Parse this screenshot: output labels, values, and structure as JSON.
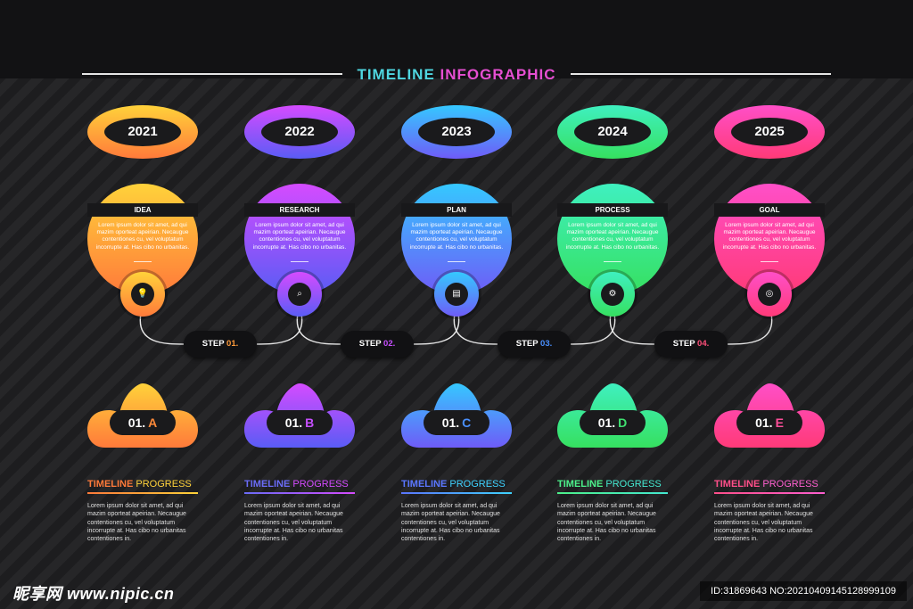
{
  "title": {
    "part1": "TIMELINE",
    "part2": "INFOGRAPHIC"
  },
  "milestones": [
    {
      "year": "2021",
      "label": "IDEA",
      "text": "Lorem ipsum dolor sit amet, ad qui mazim oporteat apeirian. Necaugue contentiones cu, vel voluptatum incorrupte at. Has cibo no urbanitas.",
      "icon": "lightbulb-icon",
      "glyph": "💡",
      "code_num": "01.",
      "code_letter": "A",
      "colors": [
        "#ffd23a",
        "#ff7a3a"
      ],
      "letter_color": "#ff8a3a",
      "progress_a": "TIMELINE",
      "progress_b": "PROGRESS",
      "progress_a_color": "#ff7a3a",
      "progress_b_color": "#ffd23a",
      "desc": "Lorem ipsum dolor sit amet, ad qui mazim oporteat apeirian. Necaugue contentiones cu, vel voluptatum incorrupte at. Has cibo no urbanitas contentiones in."
    },
    {
      "year": "2022",
      "label": "RESEARCH",
      "text": "Lorem ipsum dolor sit amet, ad qui mazim oporteat apeirian. Necaugue contentiones cu, vel voluptatum incorrupte at. Has cibo no urbanitas.",
      "icon": "magnifier-icon",
      "glyph": "⌕",
      "code_num": "01.",
      "code_letter": "B",
      "colors": [
        "#d54bff",
        "#5a5cf5"
      ],
      "letter_color": "#c64fff",
      "progress_a": "TIMELINE",
      "progress_b": "PROGRESS",
      "progress_a_color": "#6b6cf7",
      "progress_b_color": "#d54bff",
      "desc": "Lorem ipsum dolor sit amet, ad qui mazim oporteat apeirian. Necaugue contentiones cu, vel voluptatum incorrupte at. Has cibo no urbanitas contentiones in."
    },
    {
      "year": "2023",
      "label": "PLAN",
      "text": "Lorem ipsum dolor sit amet, ad qui mazim oporteat apeirian. Necaugue contentiones cu, vel voluptatum incorrupte at. Has cibo no urbanitas.",
      "icon": "clipboard-icon",
      "glyph": "▤",
      "code_num": "01.",
      "code_letter": "C",
      "colors": [
        "#35c8ff",
        "#6e5cf7"
      ],
      "letter_color": "#4a90ff",
      "progress_a": "TIMELINE",
      "progress_b": "PROGRESS",
      "progress_a_color": "#5a76ff",
      "progress_b_color": "#3fd2ff",
      "desc": "Lorem ipsum dolor sit amet, ad qui mazim oporteat apeirian. Necaugue contentiones cu, vel voluptatum incorrupte at. Has cibo no urbanitas contentiones in."
    },
    {
      "year": "2024",
      "label": "PROCESS",
      "text": "Lorem ipsum dolor sit amet, ad qui mazim oporteat apeirian. Necaugue contentiones cu, vel voluptatum incorrupte at. Has cibo no urbanitas.",
      "icon": "gear-icon",
      "glyph": "⚙",
      "code_num": "01.",
      "code_letter": "D",
      "colors": [
        "#3ff0c0",
        "#36e060"
      ],
      "letter_color": "#3fe070",
      "progress_a": "TIMELINE",
      "progress_b": "PROGRESS",
      "progress_a_color": "#4cf08a",
      "progress_b_color": "#44e8d0",
      "desc": "Lorem ipsum dolor sit amet, ad qui mazim oporteat apeirian. Necaugue contentiones cu, vel voluptatum incorrupte at. Has cibo no urbanitas contentiones in."
    },
    {
      "year": "2025",
      "label": "GOAL",
      "text": "Lorem ipsum dolor sit amet, ad qui mazim oporteat apeirian. Necaugue contentiones cu, vel voluptatum incorrupte at. Has cibo no urbanitas.",
      "icon": "target-icon",
      "glyph": "◎",
      "code_num": "01.",
      "code_letter": "E",
      "colors": [
        "#ff4fc8",
        "#ff3a78"
      ],
      "letter_color": "#ff4f9a",
      "progress_a": "TIMELINE",
      "progress_b": "PROGRESS",
      "progress_a_color": "#ff4f8a",
      "progress_b_color": "#ff5fd0",
      "desc": "Lorem ipsum dolor sit amet, ad qui mazim oporteat apeirian. Necaugue contentiones cu, vel voluptatum incorrupte at. Has cibo no urbanitas contentiones in."
    }
  ],
  "steps": [
    {
      "word": "STEP",
      "num": "01.",
      "num_color": "#ff9a3a"
    },
    {
      "word": "STEP",
      "num": "02.",
      "num_color": "#c64fff"
    },
    {
      "word": "STEP",
      "num": "03.",
      "num_color": "#4a90ff"
    },
    {
      "word": "STEP",
      "num": "04.",
      "num_color": "#ff4f7a"
    }
  ],
  "watermark": {
    "left": "昵享网 www.nipic.cn",
    "right": "ID:31869643 NO:20210409145128999109"
  }
}
